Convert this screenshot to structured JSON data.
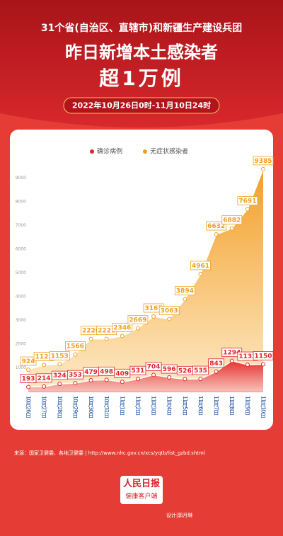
{
  "header": {
    "subtitle": "31个省(自治区、直辖市)和新疆生产建设兵团",
    "title_line1": "昨日新增本土感染者",
    "title_line2": "超1万例",
    "date_range": "2022年10月26日0时-11月10日24时"
  },
  "chart_data": {
    "type": "area",
    "categories": [
      "10月26日",
      "10月27日",
      "10月28日",
      "10月29日",
      "10月30日",
      "10月31日",
      "11月1日",
      "11月2日",
      "11月3日",
      "11月4日",
      "11月5日",
      "11月6日",
      "11月7日",
      "11月8日",
      "11月9日",
      "11月10日"
    ],
    "series": [
      {
        "name": "无症状感染者",
        "color": "#f0a020",
        "values": [
          924,
          1123,
          1153,
          1566,
          2220,
          2221,
          2346,
          2669,
          3167,
          3063,
          3894,
          4961,
          6632,
          6882,
          7691,
          9385
        ]
      },
      {
        "name": "确诊病例",
        "color": "#e0262b",
        "values": [
          193,
          214,
          324,
          353,
          479,
          498,
          409,
          531,
          704,
          596,
          526,
          535,
          843,
          1294,
          1133,
          1150
        ]
      }
    ],
    "ylim": [
      0,
      9500
    ],
    "yticks": [
      1000,
      2000,
      3000,
      4000,
      5000,
      6000,
      7000,
      8000,
      9000
    ],
    "grid": false
  },
  "footer": {
    "source": "来源：国家卫健委、各地卫健委 | http://www.nhc.gov.cn/xcs/yqtb/list_gzbd.shtml",
    "logo_line1": "人民日报",
    "logo_line2": "健康客户端",
    "credit": "设计|郭月琳"
  }
}
